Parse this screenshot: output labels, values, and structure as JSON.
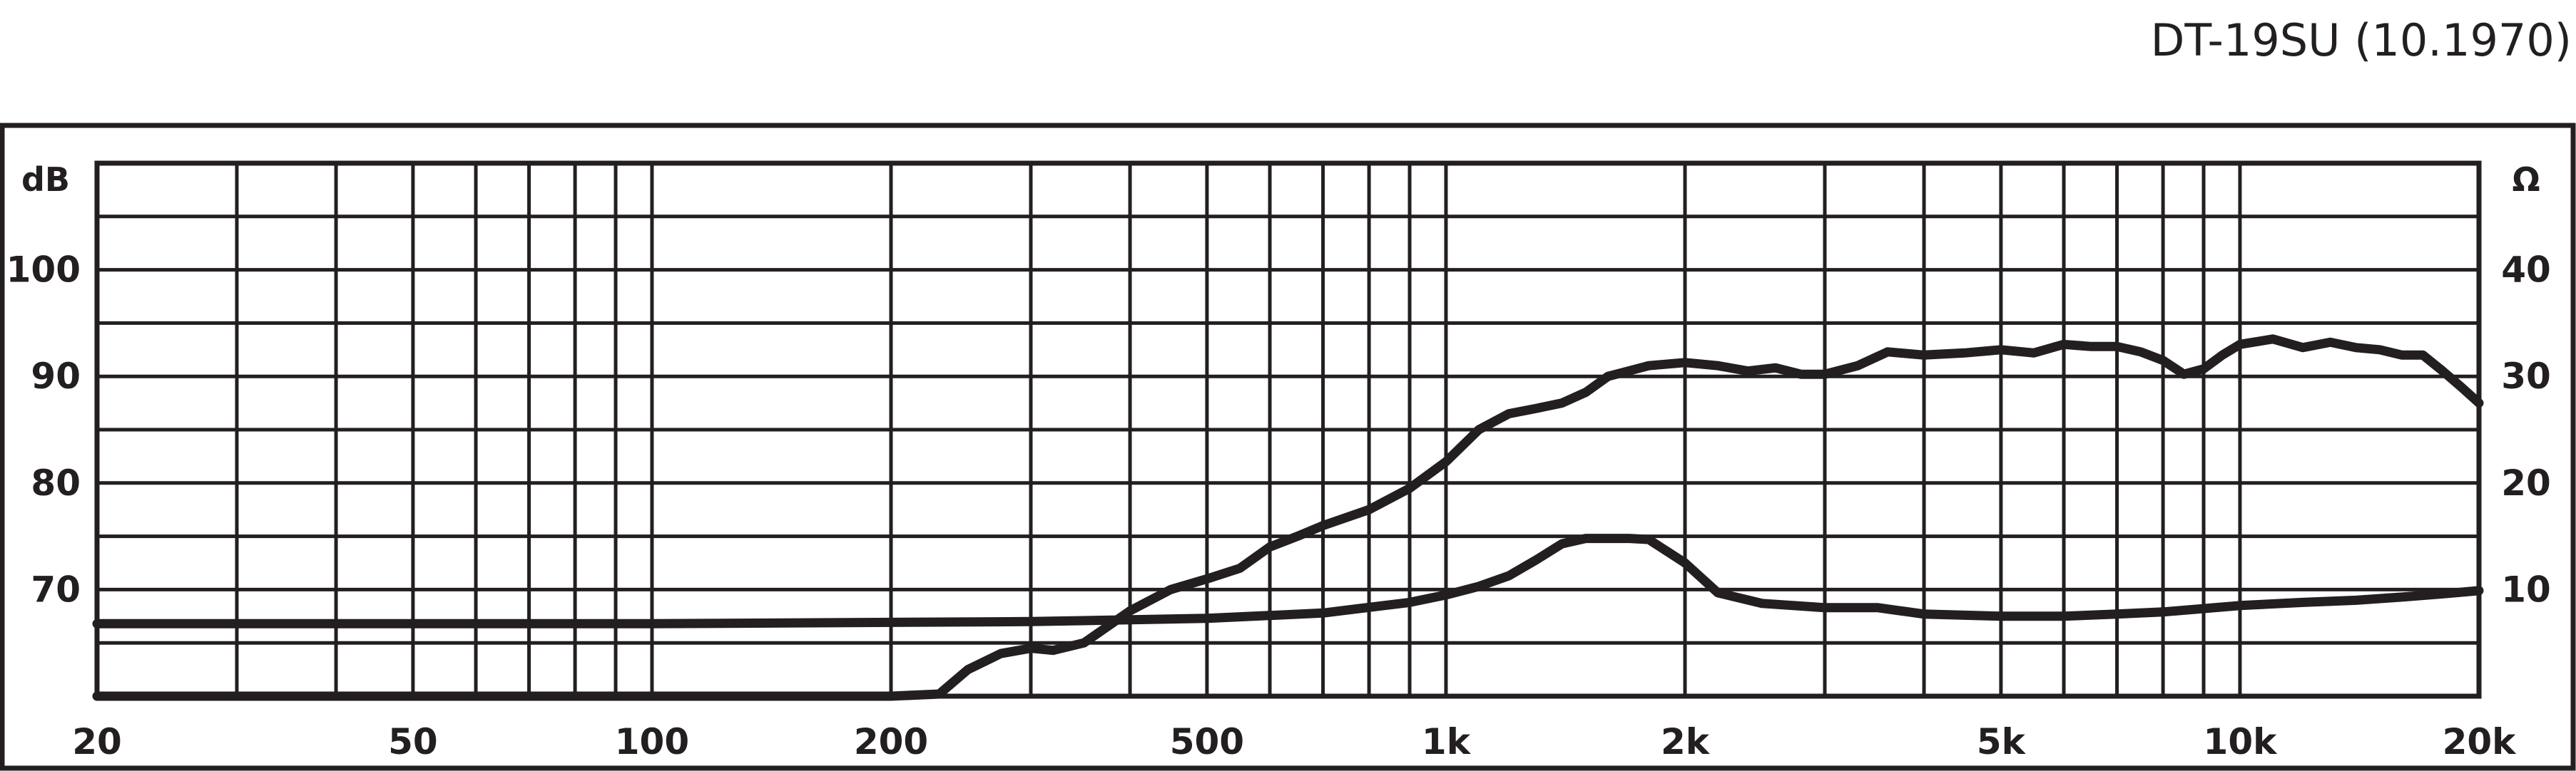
{
  "title": "DT-19SU (10.1970)",
  "chart_data": {
    "type": "line",
    "title": "DT-19SU (10.1970)",
    "x_scale": "log",
    "xlim": [
      20,
      20000
    ],
    "x_tick_values": [
      20,
      50,
      100,
      200,
      500,
      1000,
      2000,
      5000,
      10000,
      20000
    ],
    "x_tick_labels": [
      "20",
      "50",
      "100",
      "200",
      "500",
      "1k",
      "2k",
      "5k",
      "10k",
      "20k"
    ],
    "grid": true,
    "left_axis": {
      "unit_label": "dB",
      "range": [
        60,
        110
      ],
      "tick_values": [
        70,
        80,
        90,
        100
      ],
      "tick_labels": [
        "70",
        "80",
        "90",
        "100"
      ]
    },
    "right_axis": {
      "unit_label": "Ω",
      "range": [
        0,
        50
      ],
      "tick_values": [
        10,
        20,
        30,
        40
      ],
      "tick_labels": [
        "10",
        "20",
        "30",
        "40"
      ]
    },
    "series": [
      {
        "axis": "left",
        "points": [
          [
            20,
            60
          ],
          [
            200,
            60
          ],
          [
            230,
            60.2
          ],
          [
            250,
            62.5
          ],
          [
            275,
            64
          ],
          [
            300,
            64.5
          ],
          [
            320,
            64.3
          ],
          [
            350,
            65
          ],
          [
            400,
            68
          ],
          [
            450,
            70
          ],
          [
            500,
            71
          ],
          [
            550,
            72
          ],
          [
            600,
            74
          ],
          [
            650,
            75
          ],
          [
            700,
            76
          ],
          [
            800,
            77.5
          ],
          [
            900,
            79.5
          ],
          [
            1000,
            82
          ],
          [
            1100,
            85
          ],
          [
            1200,
            86.5
          ],
          [
            1300,
            87
          ],
          [
            1400,
            87.5
          ],
          [
            1500,
            88.5
          ],
          [
            1600,
            90
          ],
          [
            1800,
            91
          ],
          [
            2000,
            91.3
          ],
          [
            2200,
            91
          ],
          [
            2400,
            90.5
          ],
          [
            2600,
            90.8
          ],
          [
            2800,
            90.2
          ],
          [
            3000,
            90.2
          ],
          [
            3300,
            91
          ],
          [
            3600,
            92.3
          ],
          [
            4000,
            92
          ],
          [
            4500,
            92.2
          ],
          [
            5000,
            92.5
          ],
          [
            5500,
            92.2
          ],
          [
            6000,
            93
          ],
          [
            6500,
            92.8
          ],
          [
            7000,
            92.8
          ],
          [
            7500,
            92.3
          ],
          [
            8000,
            91.5
          ],
          [
            8500,
            90.2
          ],
          [
            9000,
            90.7
          ],
          [
            9500,
            92
          ],
          [
            10000,
            93
          ],
          [
            11000,
            93.5
          ],
          [
            12000,
            92.7
          ],
          [
            13000,
            93.2
          ],
          [
            14000,
            92.7
          ],
          [
            15000,
            92.5
          ],
          [
            16000,
            92
          ],
          [
            17000,
            92
          ],
          [
            18000,
            90.5
          ],
          [
            19000,
            89
          ],
          [
            20000,
            87.5
          ]
        ]
      },
      {
        "axis": "right",
        "points": [
          [
            20,
            6.8
          ],
          [
            100,
            6.8
          ],
          [
            300,
            7
          ],
          [
            500,
            7.3
          ],
          [
            700,
            7.8
          ],
          [
            900,
            8.8
          ],
          [
            1000,
            9.5
          ],
          [
            1100,
            10.3
          ],
          [
            1200,
            11.3
          ],
          [
            1300,
            12.8
          ],
          [
            1400,
            14.3
          ],
          [
            1500,
            14.8
          ],
          [
            1600,
            14.8
          ],
          [
            1700,
            14.8
          ],
          [
            1800,
            14.7
          ],
          [
            2000,
            12.5
          ],
          [
            2200,
            9.7
          ],
          [
            2500,
            8.7
          ],
          [
            3000,
            8.3
          ],
          [
            3500,
            8.3
          ],
          [
            4000,
            7.7
          ],
          [
            5000,
            7.5
          ],
          [
            6000,
            7.5
          ],
          [
            7000,
            7.7
          ],
          [
            8000,
            7.9
          ],
          [
            10000,
            8.5
          ],
          [
            12000,
            8.8
          ],
          [
            14000,
            9
          ],
          [
            16000,
            9.3
          ],
          [
            18000,
            9.6
          ],
          [
            20000,
            9.9
          ]
        ]
      }
    ]
  }
}
